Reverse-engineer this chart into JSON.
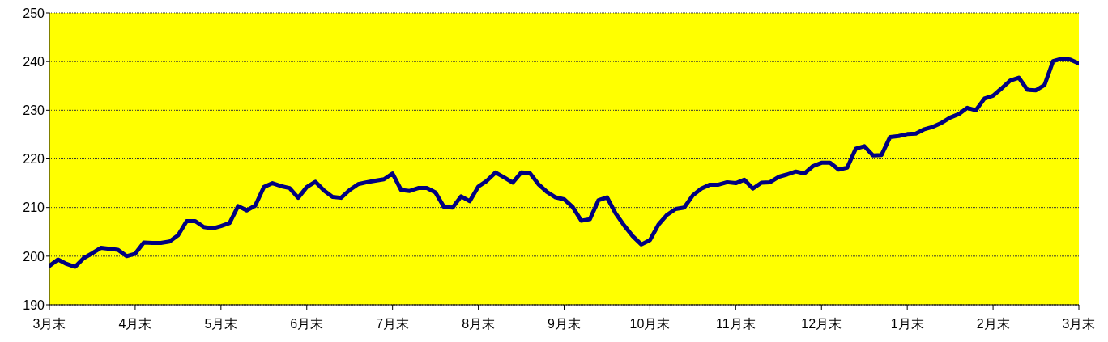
{
  "chart_data": {
    "type": "line",
    "categories": [
      "3月末",
      null,
      null,
      null,
      null,
      null,
      null,
      null,
      null,
      null,
      "4月末",
      null,
      null,
      null,
      null,
      null,
      null,
      null,
      null,
      null,
      "5月末",
      null,
      null,
      null,
      null,
      null,
      null,
      null,
      null,
      null,
      "6月末",
      null,
      null,
      null,
      null,
      null,
      null,
      null,
      null,
      null,
      "7月末",
      null,
      null,
      null,
      null,
      null,
      null,
      null,
      null,
      null,
      "8月末",
      null,
      null,
      null,
      null,
      null,
      null,
      null,
      null,
      null,
      "9月末",
      null,
      null,
      null,
      null,
      null,
      null,
      null,
      null,
      null,
      "10月末",
      null,
      null,
      null,
      null,
      null,
      null,
      null,
      null,
      null,
      "11月末",
      null,
      null,
      null,
      null,
      null,
      null,
      null,
      null,
      null,
      "12月末",
      null,
      null,
      null,
      null,
      null,
      null,
      null,
      null,
      null,
      "1月末",
      null,
      null,
      null,
      null,
      null,
      null,
      null,
      null,
      null,
      "2月末",
      null,
      null,
      null,
      null,
      null,
      null,
      null,
      null,
      null,
      "3月末"
    ],
    "series": [
      {
        "color": "#000080",
        "values": [
          198,
          199.3,
          198.4,
          197.8,
          199.6,
          200.6,
          201.7,
          201.5,
          201.3,
          200,
          200.5,
          202.8,
          202.7,
          202.7,
          203,
          204.3,
          207.2,
          207.2,
          206,
          205.7,
          206.2,
          206.8,
          210.3,
          209.4,
          210.4,
          214.2,
          215,
          214.4,
          214,
          212,
          214.2,
          215.3,
          213.5,
          212.2,
          212,
          213.6,
          214.8,
          215.2,
          215.5,
          215.8,
          217,
          213.6,
          213.4,
          214,
          214,
          213.1,
          210.1,
          210,
          212.3,
          211.3,
          214.3,
          215.5,
          217.2,
          216.2,
          215.1,
          217.2,
          217.1,
          214.8,
          213.2,
          212.1,
          211.7,
          210.1,
          207.3,
          207.6,
          211.5,
          212.1,
          208.8,
          206.3,
          204.1,
          202.4,
          203.3,
          206.5,
          208.5,
          209.7,
          210,
          212.5,
          213.9,
          214.7,
          214.7,
          215.2,
          215,
          215.7,
          213.9,
          215.1,
          215.2,
          216.3,
          216.8,
          217.4,
          217,
          218.5,
          219.2,
          219.2,
          217.8,
          218.2,
          222.1,
          222.6,
          220.7,
          220.8,
          224.5,
          224.7,
          225.1,
          225.2,
          226.1,
          226.6,
          227.4,
          228.5,
          229.2,
          230.5,
          230,
          232.4,
          233,
          234.5,
          236.1,
          236.7,
          234.2,
          234.1,
          235.2,
          240.1,
          240.6,
          240.4,
          239.6
        ]
      }
    ],
    "ylim": [
      190,
      250
    ],
    "yticks": [
      190,
      200,
      210,
      220,
      230,
      240,
      250
    ],
    "grid": "y",
    "legend": false,
    "marker": "none",
    "line_style": "solid"
  }
}
